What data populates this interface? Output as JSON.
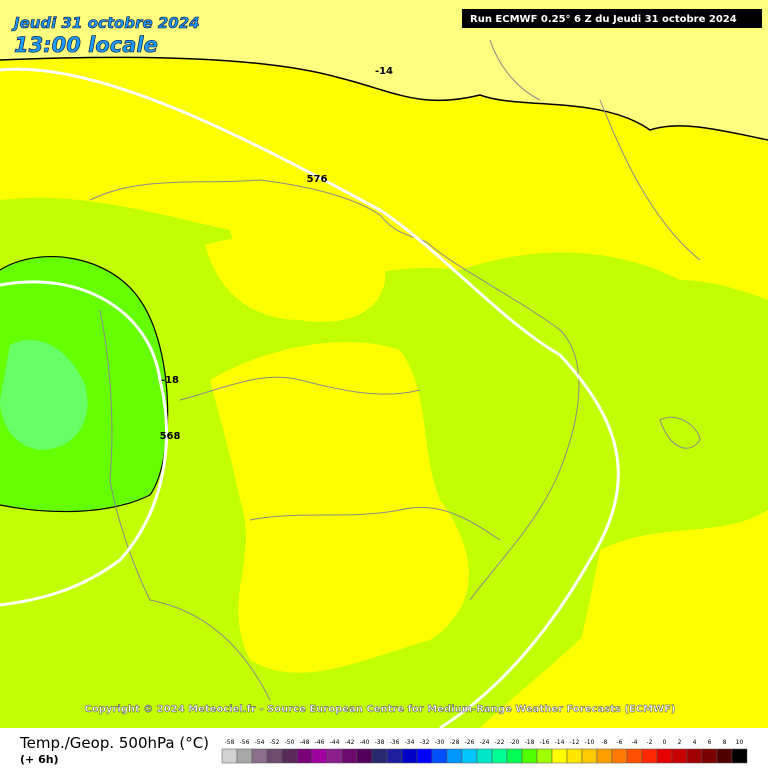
{
  "header": {
    "date": "Jeudi 31 octobre 2024",
    "time": "13:00 locale",
    "run": "Run ECMWF 0.25° 6 Z du Jeudi 31 octobre 2024"
  },
  "contour_labels": [
    "-14",
    "576",
    "-18",
    "568"
  ],
  "copyright": "Copyright © 2024 Meteociel.fr - Source European Centre for Medium-Range Weather Forecasts (ECMWF)",
  "footer": {
    "title": "Temp./Geop. 500hPa (°C)",
    "lead": "(+ 6h)"
  },
  "scale": {
    "labels": [
      -58,
      -56,
      -54,
      -52,
      -50,
      -48,
      -46,
      -44,
      -42,
      -40,
      -38,
      -36,
      -34,
      -32,
      -30,
      -28,
      -26,
      -24,
      -22,
      -20,
      -18,
      -16,
      -14,
      -12,
      -10,
      -8,
      -6,
      -4,
      -2,
      0,
      2,
      4,
      6,
      8,
      10
    ],
    "colors": [
      "#d2d2d2",
      "#a8a8a8",
      "#8c6e8c",
      "#6e4a6e",
      "#5a2a5a",
      "#7a007a",
      "#a000a0",
      "#8c1e8c",
      "#6e0a6e",
      "#50005a",
      "#28286e",
      "#1e1e9e",
      "#0000c8",
      "#0000ff",
      "#0050ff",
      "#0096ff",
      "#00c8ff",
      "#00e6c8",
      "#00ff96",
      "#00ff50",
      "#50ff00",
      "#a0ff00",
      "#ffff00",
      "#ffe600",
      "#ffc800",
      "#ffa000",
      "#ff7800",
      "#ff5000",
      "#ff2800",
      "#e60000",
      "#c80000",
      "#a00000",
      "#780000",
      "#500000",
      "#000000"
    ]
  }
}
